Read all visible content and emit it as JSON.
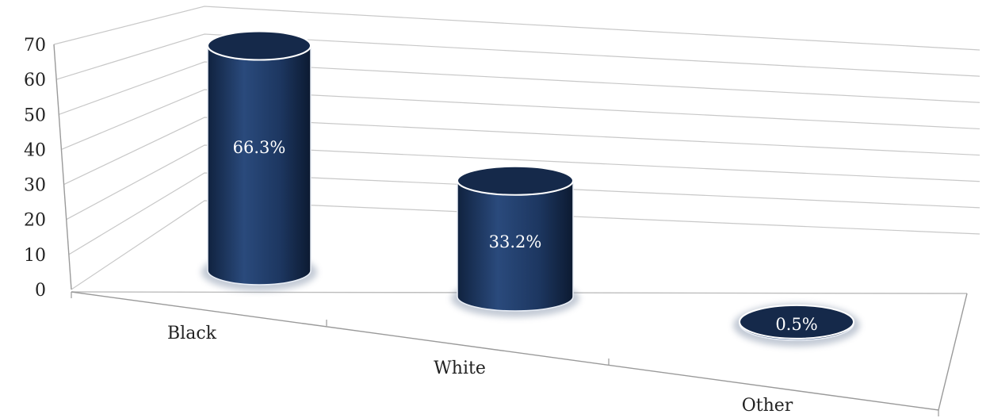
{
  "chart_data": {
    "type": "bar",
    "style": "3d-cylinder",
    "categories": [
      "Black",
      "White",
      "Other"
    ],
    "values": [
      66.3,
      33.2,
      0.5
    ],
    "data_labels": [
      "66.3%",
      "33.2%",
      "0.5%"
    ],
    "yticks": [
      "0",
      "10",
      "20",
      "30",
      "40",
      "50",
      "60",
      "70"
    ],
    "ylim": [
      0,
      70
    ],
    "title": "",
    "xlabel": "",
    "ylabel": "",
    "grid": true,
    "legend": "none",
    "bar_color": "#1f3a64"
  }
}
